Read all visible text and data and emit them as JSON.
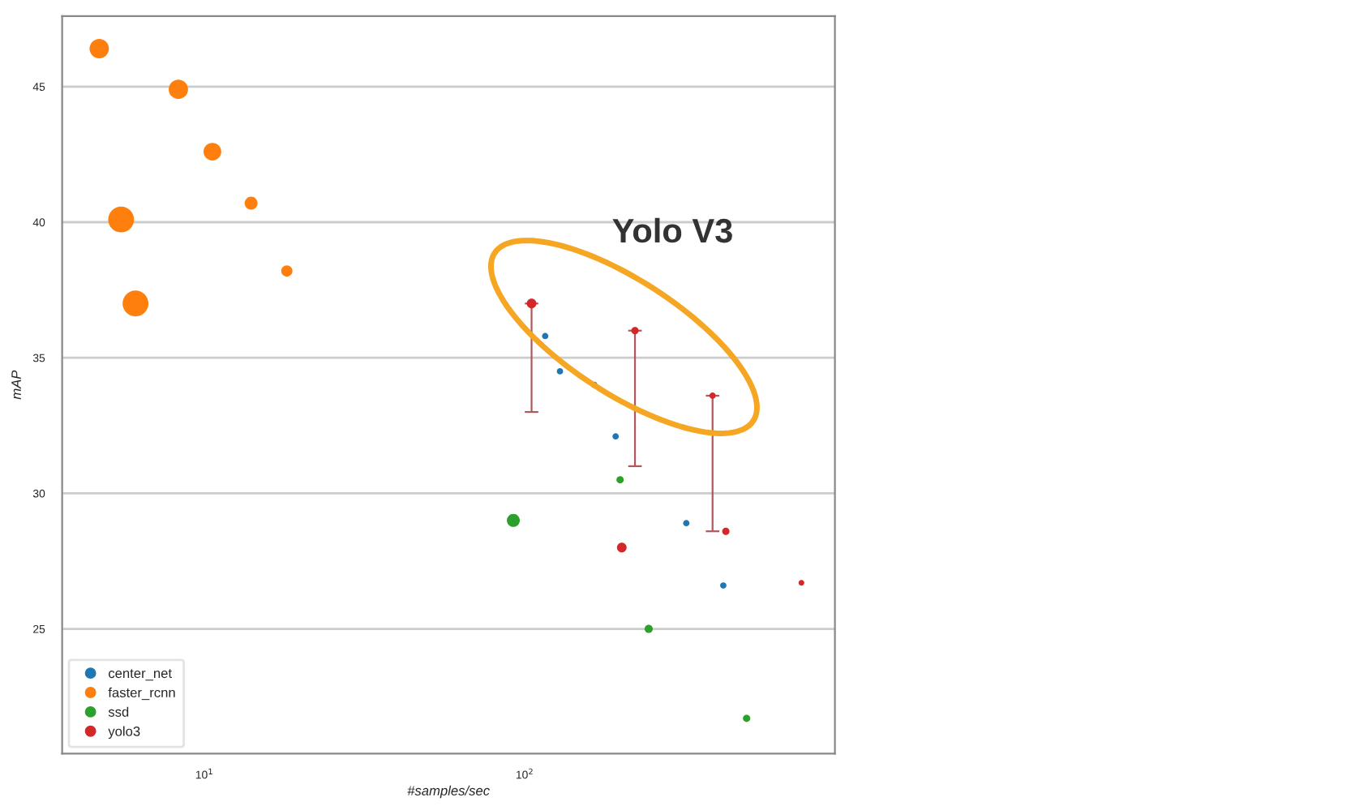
{
  "chart_data": {
    "type": "bubble",
    "xlabel": "#samples/sec",
    "ylabel": "mAP",
    "log": "x",
    "xlim": [
      3.6,
      930
    ],
    "ylim": [
      20.4,
      47.6
    ],
    "xticks": [
      {
        "value": 10,
        "label": "10$^{1}$"
      },
      {
        "value": 100,
        "label": "10$^{2}$"
      }
    ],
    "yticks": [
      25,
      30,
      35,
      40,
      45
    ],
    "grid": "y",
    "legend": "bottom left",
    "marker": "circle",
    "annotations": [
      "Yolo V3"
    ],
    "series": [
      {
        "name": "center_net",
        "color": "#1f77b4",
        "x": [
          115.9,
          128.9,
          164.9,
          192.3,
          319.6,
          416.9
        ],
        "values": [
          35.8,
          34.5,
          34.0,
          32.1,
          28.9,
          26.6
        ],
        "sizes": [
          0.06,
          0.06,
          0.06,
          0.06,
          0.06,
          0.06
        ]
      },
      {
        "name": "faster_rcnn",
        "color": "#ff7f0e",
        "x": [
          4.7,
          8.3,
          10.6,
          14.0,
          18.1,
          5.5,
          6.1
        ],
        "values": [
          46.4,
          44.9,
          42.6,
          40.7,
          38.2,
          40.1,
          37.0
        ],
        "sizes": [
          0.56,
          0.56,
          0.47,
          0.25,
          0.19,
          1,
          1
        ]
      },
      {
        "name": "ssd",
        "color": "#2ca02c",
        "x": [
          198.6,
          92.2,
          243.9,
          493
        ],
        "values": [
          30.5,
          29.0,
          25.0,
          21.7
        ],
        "sizes": [
          0.08,
          0.25,
          0.1,
          0.08
        ]
      },
      {
        "name": "yolo3",
        "color": "#d62728",
        "x": [
          105.1,
          221,
          386,
          424.6,
          201,
          731
        ],
        "values": [
          37.0,
          36.0,
          33.6,
          28.6,
          28.0,
          26.7
        ],
        "sizes": [
          0.14,
          0.08,
          0.06,
          0.08,
          0.14,
          0.05
        ],
        "errors": [
          [
            33.0,
            37.0
          ],
          [
            31.0,
            36.0
          ],
          [
            28.6,
            33.6
          ],
          null,
          null,
          null
        ]
      }
    ]
  }
}
